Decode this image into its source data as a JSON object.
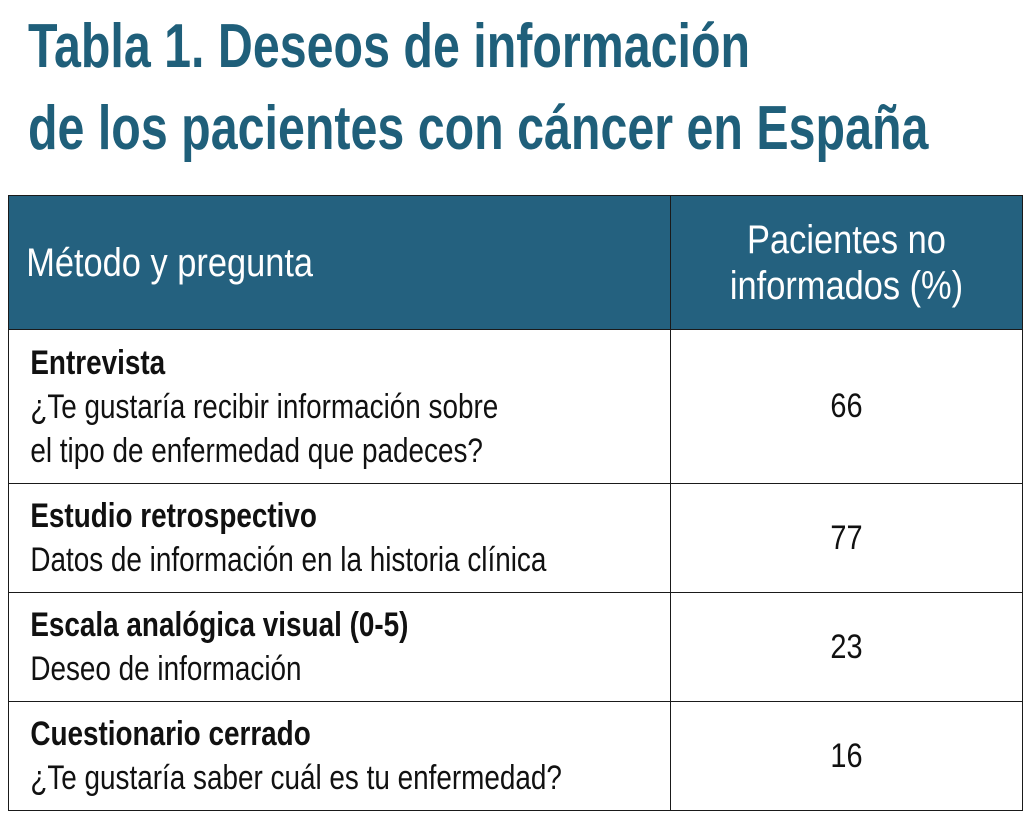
{
  "title": {
    "line1": "Tabla 1. Deseos de información",
    "line2": "de los pacientes con cáncer en España"
  },
  "table": {
    "headers": {
      "method": "Método y pregunta",
      "patients_line1": "Pacientes no",
      "patients_line2": "informados (%)"
    },
    "rows": [
      {
        "method": "Entrevista",
        "question_lines": [
          "¿Te gustaría recibir información sobre",
          "el tipo de enfermedad que padeces?"
        ],
        "value": "66"
      },
      {
        "method": "Estudio retrospectivo",
        "question_lines": [
          "Datos de información en la historia clínica"
        ],
        "value": "77"
      },
      {
        "method": "Escala analógica visual (0-5)",
        "question_lines": [
          "Deseo de información"
        ],
        "value": "23"
      },
      {
        "method": "Cuestionario cerrado",
        "question_lines": [
          "¿Te gustaría saber cuál es tu enfermedad?"
        ],
        "value": "16"
      }
    ]
  },
  "colors": {
    "title": "#1f5f7a",
    "header_bg": "#24617f",
    "header_text": "#ffffff",
    "border": "#1a1a1a"
  }
}
